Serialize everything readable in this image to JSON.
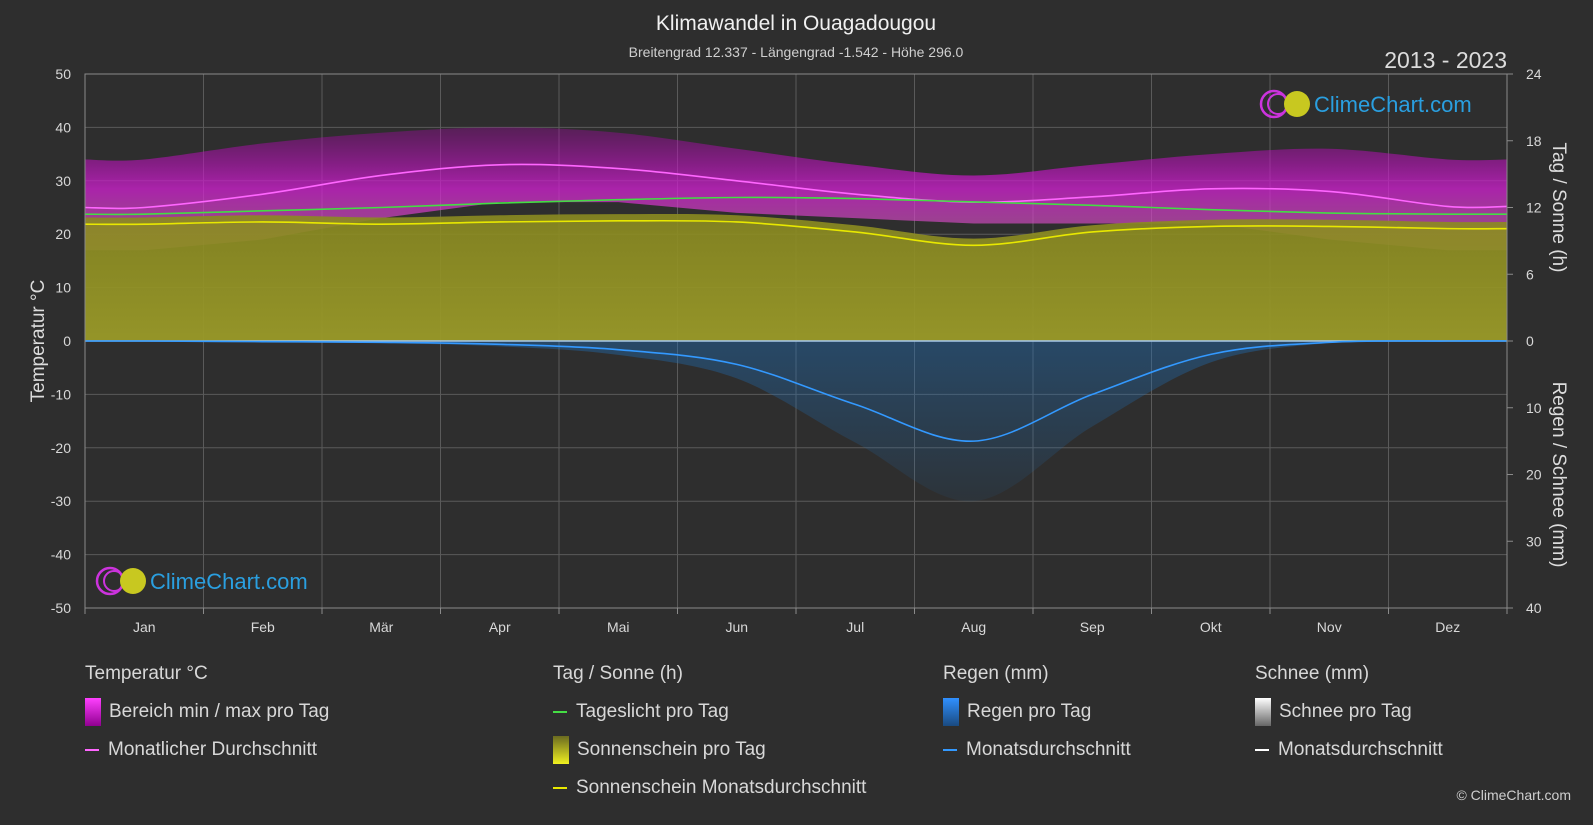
{
  "chart_data": {
    "type": "area",
    "title": "Klimawandel in Ouagadougou",
    "subtitle": "Breitengrad 12.337 - Längengrad -1.542 - Höhe 296.0",
    "period": "2013 - 2023",
    "watermark": "ClimeChart.com",
    "copyright": "© ClimeChart.com",
    "left_axis": {
      "label": "Temperatur °C",
      "min": -50,
      "max": 50,
      "ticks": [
        50,
        40,
        30,
        20,
        10,
        0,
        -10,
        -20,
        -30,
        -40,
        -50
      ]
    },
    "right_axis_top": {
      "label": "Tag / Sonne (h)",
      "min": 0,
      "max": 24,
      "ticks": [
        24,
        18,
        12,
        6,
        0
      ]
    },
    "right_axis_bottom": {
      "label": "Regen / Schnee (mm)",
      "min": 0,
      "max": 40,
      "ticks": [
        0,
        10,
        20,
        30,
        40
      ]
    },
    "months": [
      "Jan",
      "Feb",
      "Mär",
      "Apr",
      "Mai",
      "Jun",
      "Jul",
      "Aug",
      "Sep",
      "Okt",
      "Nov",
      "Dez"
    ],
    "series": [
      {
        "name": "Monatlicher Durchschnitt",
        "unit": "°C",
        "color": "#ff66ff",
        "values": [
          25.0,
          27.5,
          31.0,
          33.0,
          32.3,
          30.0,
          27.5,
          26.0,
          27.0,
          28.5,
          28.0,
          25.2
        ]
      },
      {
        "name": "Tageslicht pro Tag",
        "unit": "h",
        "color": "#44dd44",
        "values": [
          11.4,
          11.7,
          12.0,
          12.4,
          12.7,
          12.9,
          12.8,
          12.5,
          12.2,
          11.8,
          11.5,
          11.4
        ]
      },
      {
        "name": "Sonnenschein Monatsdurchschnitt",
        "unit": "h",
        "color": "#e8e800",
        "values": [
          10.5,
          10.7,
          10.5,
          10.7,
          10.8,
          10.7,
          9.8,
          8.6,
          9.8,
          10.3,
          10.3,
          10.1
        ]
      },
      {
        "name": "Regen Monatsdurchschnitt",
        "unit": "mm",
        "color": "#3399ff",
        "values": [
          0.0,
          0.1,
          0.2,
          0.5,
          1.3,
          3.5,
          9.5,
          15.0,
          8.0,
          2.0,
          0.2,
          0.0
        ]
      },
      {
        "name": "Temperatur Tagesmaximum (Bereichsoberkante)",
        "unit": "°C",
        "color": "#cc22cc",
        "values": [
          34,
          37,
          39,
          40,
          39,
          36,
          33,
          31,
          33,
          35,
          36,
          34
        ]
      },
      {
        "name": "Temperatur Tagesminimum (Bereichsunterkante)",
        "unit": "°C",
        "color": "#cc22cc",
        "values": [
          17,
          19,
          23,
          26,
          26,
          24,
          23,
          22,
          22,
          22,
          19,
          17
        ]
      }
    ],
    "legend": {
      "groups": [
        {
          "title": "Temperatur °C",
          "items": [
            {
              "label": "Bereich min / max pro Tag",
              "kind": "box",
              "color": "#dd22dd"
            },
            {
              "label": "Monatlicher Durchschnitt",
              "kind": "line",
              "color": "#ff66ff"
            }
          ]
        },
        {
          "title": "Tag / Sonne (h)",
          "items": [
            {
              "label": "Tageslicht pro Tag",
              "kind": "line",
              "color": "#44dd44"
            },
            {
              "label": "Sonnenschein pro Tag",
              "kind": "box",
              "color": "#c8c820"
            },
            {
              "label": "Sonnenschein Monatsdurchschnitt",
              "kind": "line",
              "color": "#e8e800"
            }
          ]
        },
        {
          "title": "Regen (mm)",
          "items": [
            {
              "label": "Regen pro Tag",
              "kind": "box",
              "color": "#2a80d0"
            },
            {
              "label": "Monatsdurchschnitt",
              "kind": "line",
              "color": "#3399ff"
            }
          ]
        },
        {
          "title": "Schnee (mm)",
          "items": [
            {
              "label": "Schnee pro Tag",
              "kind": "box",
              "color": "#dddddd"
            },
            {
              "label": "Monatsdurchschnitt",
              "kind": "line",
              "color": "#ffffff"
            }
          ]
        }
      ]
    }
  }
}
